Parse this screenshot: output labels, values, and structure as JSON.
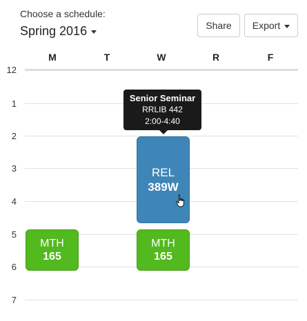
{
  "header": {
    "choose_label": "Choose a schedule:",
    "term": "Spring 2016",
    "share_label": "Share",
    "export_label": "Export"
  },
  "days": [
    "M",
    "T",
    "W",
    "R",
    "F"
  ],
  "hours": [
    "12",
    "1",
    "2",
    "3",
    "4",
    "5",
    "6",
    "7"
  ],
  "courses": [
    {
      "dept": "MTH",
      "number": "165",
      "day": "M",
      "color": "#52b91e"
    },
    {
      "dept": "MTH",
      "number": "165",
      "day": "W",
      "color": "#52b91e"
    },
    {
      "dept": "REL",
      "number": "389W",
      "day": "W",
      "color": "#3f86b8"
    }
  ],
  "tooltip": {
    "title": "Senior Seminar",
    "location": "RRLIB 442",
    "time": "2:00-4:40"
  }
}
